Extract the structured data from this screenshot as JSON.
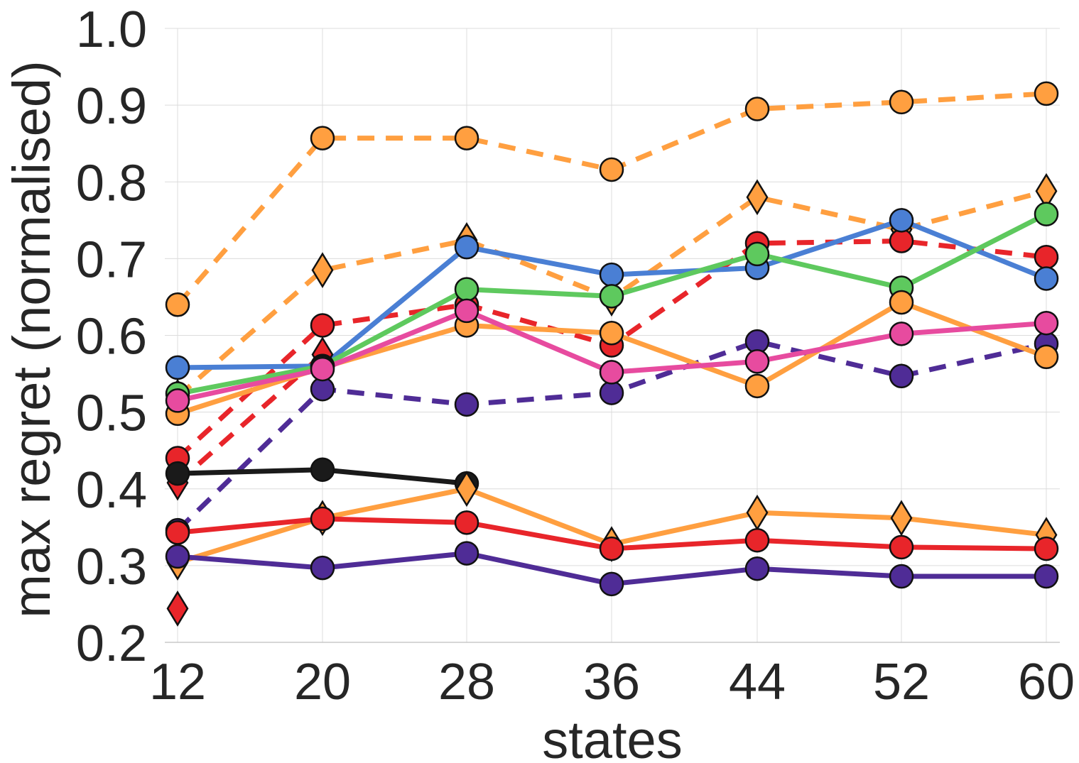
{
  "chart_data": {
    "type": "line",
    "xlabel": "states",
    "ylabel": "max regret (normalised)",
    "x": [
      12,
      20,
      28,
      36,
      44,
      52,
      60
    ],
    "x_tick_labels": [
      "12",
      "20",
      "28",
      "36",
      "44",
      "52",
      "60"
    ],
    "ylim": [
      0.2,
      1.0
    ],
    "y_ticks": [
      0.2,
      0.3,
      0.4,
      0.5,
      0.6,
      0.7,
      0.8,
      0.9,
      1.0
    ],
    "y_tick_labels": [
      "0.2",
      "0.3",
      "0.4",
      "0.5",
      "0.6",
      "0.7",
      "0.8",
      "0.9",
      "1.0"
    ],
    "grid": true,
    "legend": "none",
    "series": [
      {
        "color": "#ff9f40",
        "dash": true,
        "marker": "circle",
        "values": [
          0.64,
          0.857,
          0.857,
          0.816,
          0.895,
          0.904,
          0.915
        ]
      },
      {
        "color": "#ff9f40",
        "dash": true,
        "marker": "diamond",
        "values": [
          0.52,
          0.685,
          0.724,
          0.648,
          0.78,
          0.738,
          0.788
        ]
      },
      {
        "color": "#e8252a",
        "dash": true,
        "marker": "circle",
        "values": [
          0.44,
          0.613,
          0.64,
          0.587,
          0.72,
          0.723,
          0.702
        ]
      },
      {
        "color": "#e8252a",
        "dash": true,
        "marker": "diamond",
        "values": [
          0.408,
          0.575,
          null,
          null,
          null,
          null,
          null
        ]
      },
      {
        "color": "#4f2c96",
        "dash": true,
        "marker": "circle",
        "values": [
          0.346,
          0.53,
          0.51,
          0.525,
          0.592,
          0.547,
          0.589
        ]
      },
      {
        "color": "#4a7fd4",
        "dash": false,
        "marker": "circle",
        "values": [
          0.558,
          0.56,
          0.715,
          0.679,
          0.688,
          0.75,
          0.674
        ]
      },
      {
        "color": "#5ec95e",
        "dash": false,
        "marker": "circle",
        "values": [
          0.524,
          0.56,
          0.66,
          0.651,
          0.706,
          0.662,
          0.758
        ]
      },
      {
        "color": "#ff9f40",
        "dash": false,
        "marker": "circle",
        "values": [
          0.498,
          0.558,
          0.613,
          0.603,
          0.534,
          0.643,
          0.572
        ]
      },
      {
        "color": "#e74b9f",
        "dash": false,
        "marker": "circle",
        "values": [
          0.515,
          0.556,
          0.632,
          0.552,
          0.566,
          0.602,
          0.616
        ]
      },
      {
        "color": "#1a1a1a",
        "dash": false,
        "marker": "circle",
        "values": [
          0.42,
          0.425,
          0.407,
          null,
          null,
          null,
          null
        ]
      },
      {
        "color": "#ff9f40",
        "dash": false,
        "marker": "diamond",
        "values": [
          0.304,
          0.362,
          0.4,
          0.328,
          0.369,
          0.362,
          0.34
        ]
      },
      {
        "color": "#e8252a",
        "dash": false,
        "marker": "circle",
        "values": [
          0.343,
          0.361,
          0.356,
          0.322,
          0.333,
          0.324,
          0.322
        ]
      },
      {
        "color": "#4f2c96",
        "dash": false,
        "marker": "circle",
        "values": [
          0.312,
          0.297,
          0.316,
          0.276,
          0.296,
          0.286,
          0.286
        ]
      },
      {
        "color": "#e8252a",
        "dash": false,
        "marker": "diamond",
        "values": [
          0.244,
          null,
          null,
          null,
          null,
          null,
          null
        ]
      }
    ]
  }
}
